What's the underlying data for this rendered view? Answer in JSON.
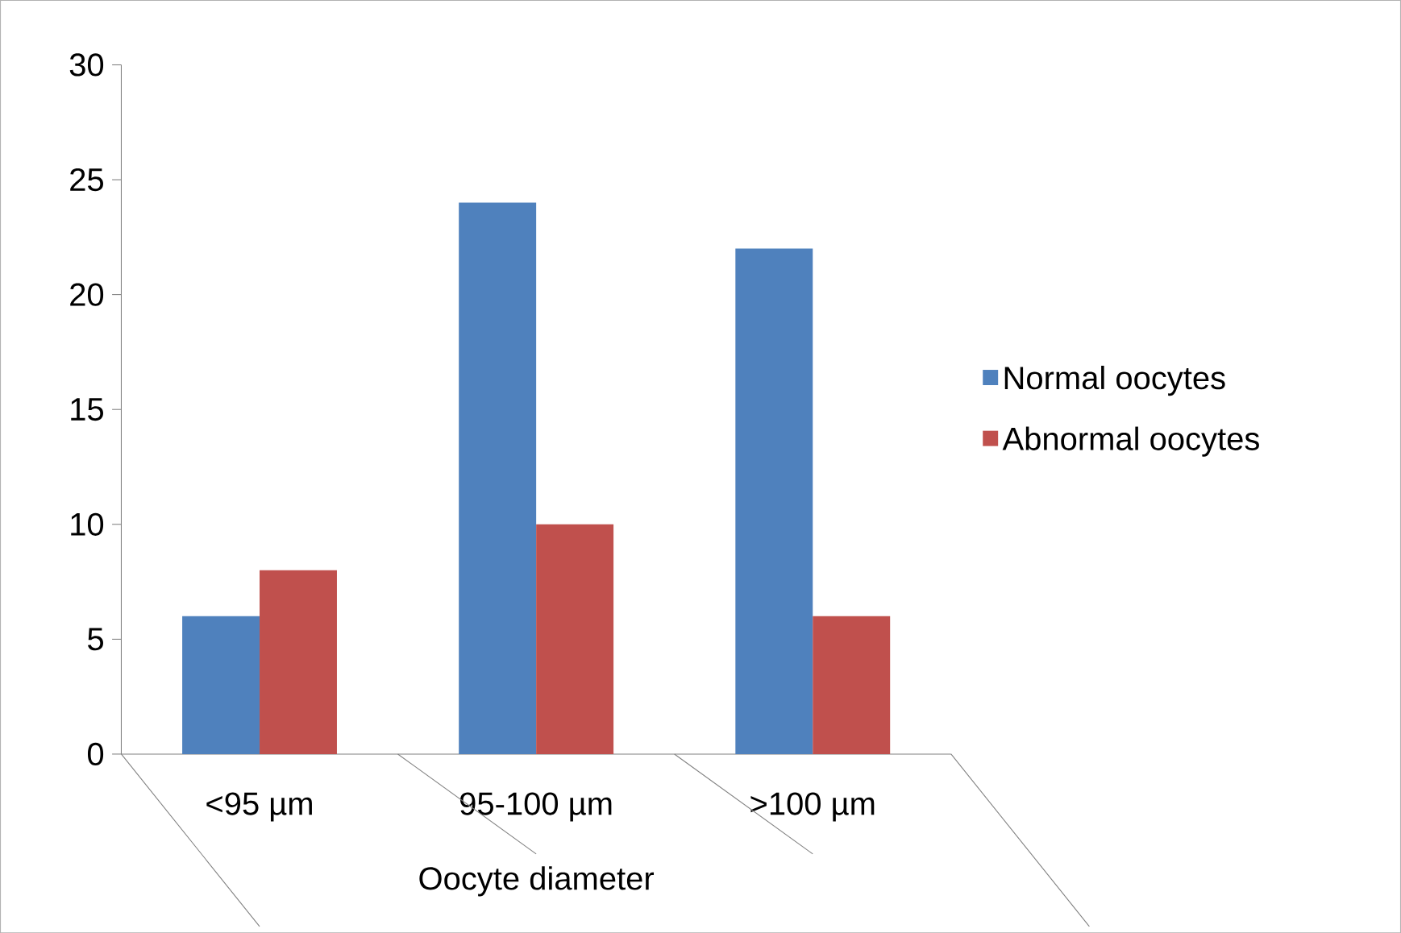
{
  "chart_data": {
    "type": "bar",
    "xlabel": "Oocyte diameter",
    "categories": [
      "<95 µm",
      "95-100 µm",
      ">100 µm"
    ],
    "series": [
      {
        "name": "Normal oocytes",
        "color": "#4f81bd",
        "values": [
          6,
          24,
          22
        ]
      },
      {
        "name": "Abnormal oocytes",
        "color": "#c0504d",
        "values": [
          8,
          10,
          6
        ]
      }
    ],
    "ylim": [
      0,
      30
    ],
    "yticks": [
      0,
      5,
      10,
      15,
      20,
      25,
      30
    ],
    "legend": "right"
  }
}
